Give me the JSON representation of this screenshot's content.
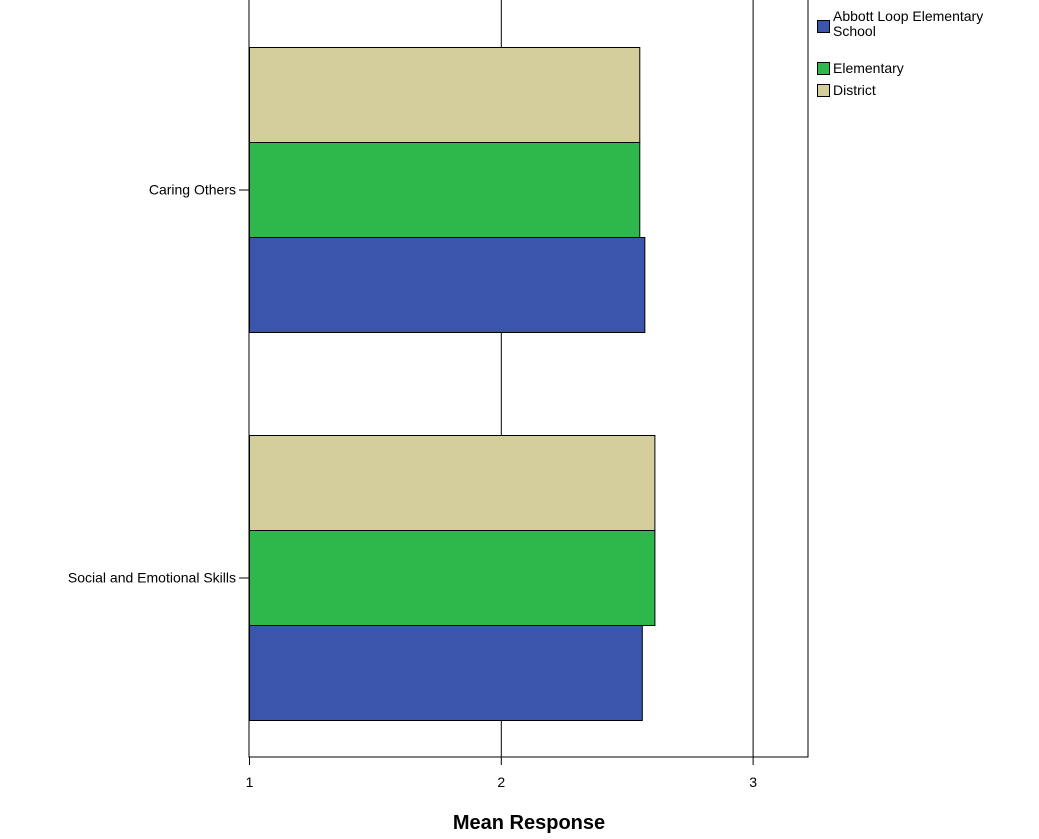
{
  "chart_data": {
    "type": "bar",
    "orientation": "horizontal",
    "title": "",
    "xlabel": "Mean Response",
    "ylabel": "",
    "xlim": [
      1,
      3.22
    ],
    "xticks": [
      1,
      2,
      3
    ],
    "grid": true,
    "legend_position": "top-right, outside plot",
    "categories": [
      "Caring Others",
      "Social and Emotional Skills"
    ],
    "series": [
      {
        "name": "Abbott Loop Elementary School",
        "color": "#3C55AC",
        "values": [
          2.57,
          2.56
        ]
      },
      {
        "name": "Elementary",
        "color": "#2EB74A",
        "values": [
          2.55,
          2.61
        ]
      },
      {
        "name": "District",
        "color": "#D3CE9B",
        "values": [
          2.55,
          2.61
        ]
      }
    ]
  }
}
